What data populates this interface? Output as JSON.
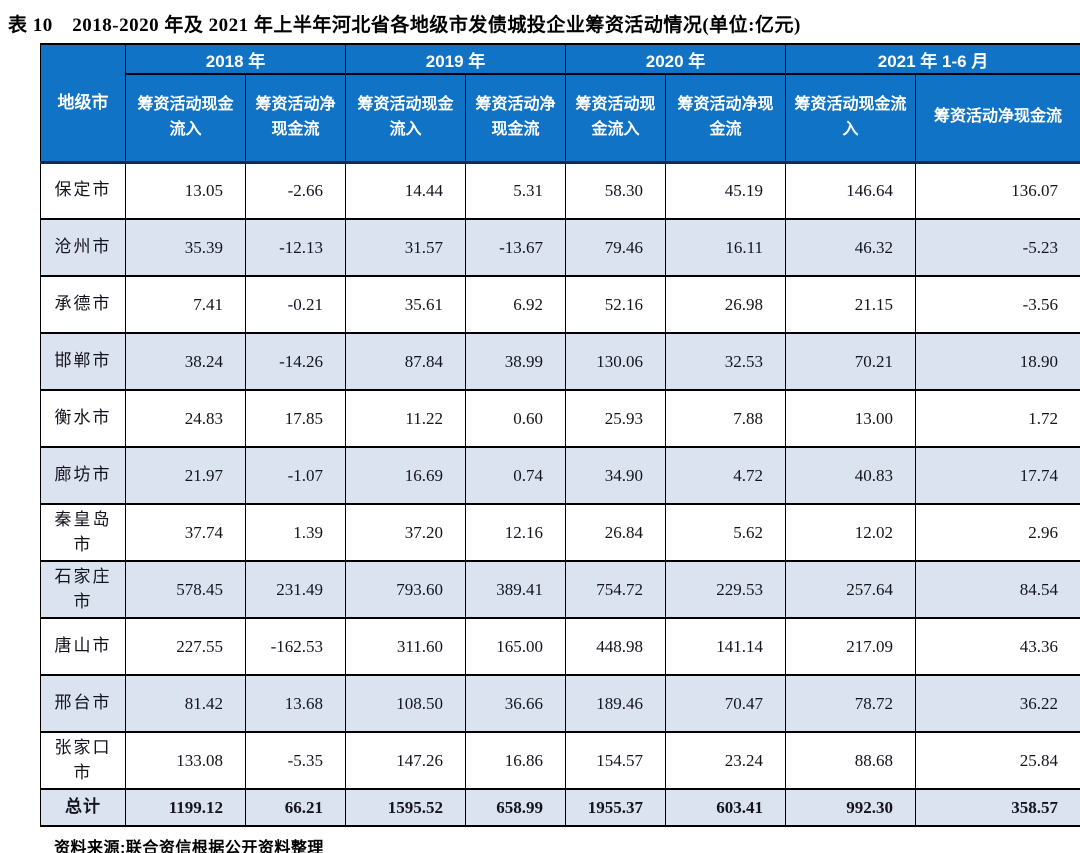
{
  "title": "表 10　2018-2020 年及 2021 年上半年河北省各地级市发债城投企业筹资活动情况(单位:亿元)",
  "table": {
    "corner_header": "地级市",
    "year_groups": [
      {
        "label": "2018 年",
        "inflow_label": "筹资活动现金流入",
        "net_label": "筹资活动净现金流"
      },
      {
        "label": "2019 年",
        "inflow_label": "筹资活动现金流入",
        "net_label": "筹资活动净现金流"
      },
      {
        "label": "2020 年",
        "inflow_label": "筹资活动现金流入",
        "net_label": "筹资活动净现金流"
      },
      {
        "label": "2021 年 1-6 月",
        "inflow_label": "筹资活动现金流入",
        "net_label": "筹资活动净现金流"
      }
    ],
    "rows": [
      {
        "city": "保定市",
        "values": [
          "13.05",
          "-2.66",
          "14.44",
          "5.31",
          "58.30",
          "45.19",
          "146.64",
          "136.07"
        ]
      },
      {
        "city": "沧州市",
        "values": [
          "35.39",
          "-12.13",
          "31.57",
          "-13.67",
          "79.46",
          "16.11",
          "46.32",
          "-5.23"
        ]
      },
      {
        "city": "承德市",
        "values": [
          "7.41",
          "-0.21",
          "35.61",
          "6.92",
          "52.16",
          "26.98",
          "21.15",
          "-3.56"
        ]
      },
      {
        "city": "邯郸市",
        "values": [
          "38.24",
          "-14.26",
          "87.84",
          "38.99",
          "130.06",
          "32.53",
          "70.21",
          "18.90"
        ]
      },
      {
        "city": "衡水市",
        "values": [
          "24.83",
          "17.85",
          "11.22",
          "0.60",
          "25.93",
          "7.88",
          "13.00",
          "1.72"
        ]
      },
      {
        "city": "廊坊市",
        "values": [
          "21.97",
          "-1.07",
          "16.69",
          "0.74",
          "34.90",
          "4.72",
          "40.83",
          "17.74"
        ]
      },
      {
        "city": "秦皇岛市",
        "values": [
          "37.74",
          "1.39",
          "37.20",
          "12.16",
          "26.84",
          "5.62",
          "12.02",
          "2.96"
        ]
      },
      {
        "city": "石家庄市",
        "values": [
          "578.45",
          "231.49",
          "793.60",
          "389.41",
          "754.72",
          "229.53",
          "257.64",
          "84.54"
        ]
      },
      {
        "city": "唐山市",
        "values": [
          "227.55",
          "-162.53",
          "311.60",
          "165.00",
          "448.98",
          "141.14",
          "217.09",
          "43.36"
        ]
      },
      {
        "city": "邢台市",
        "values": [
          "81.42",
          "13.68",
          "108.50",
          "36.66",
          "189.46",
          "70.47",
          "78.72",
          "36.22"
        ]
      },
      {
        "city": "张家口市",
        "values": [
          "133.08",
          "-5.35",
          "147.26",
          "16.86",
          "154.57",
          "23.24",
          "88.68",
          "25.84"
        ]
      }
    ],
    "total_row": {
      "label": "总计",
      "values": [
        "1199.12",
        "66.21",
        "1595.52",
        "658.99",
        "1955.37",
        "603.41",
        "992.30",
        "358.57"
      ]
    }
  },
  "source": "资料来源:联合资信根据公开资料整理",
  "colors": {
    "header_bg": "#1173c6",
    "row_alt_bg": "#dbe3f1",
    "header_text": "#ffffff",
    "body_text": "#14141e"
  }
}
